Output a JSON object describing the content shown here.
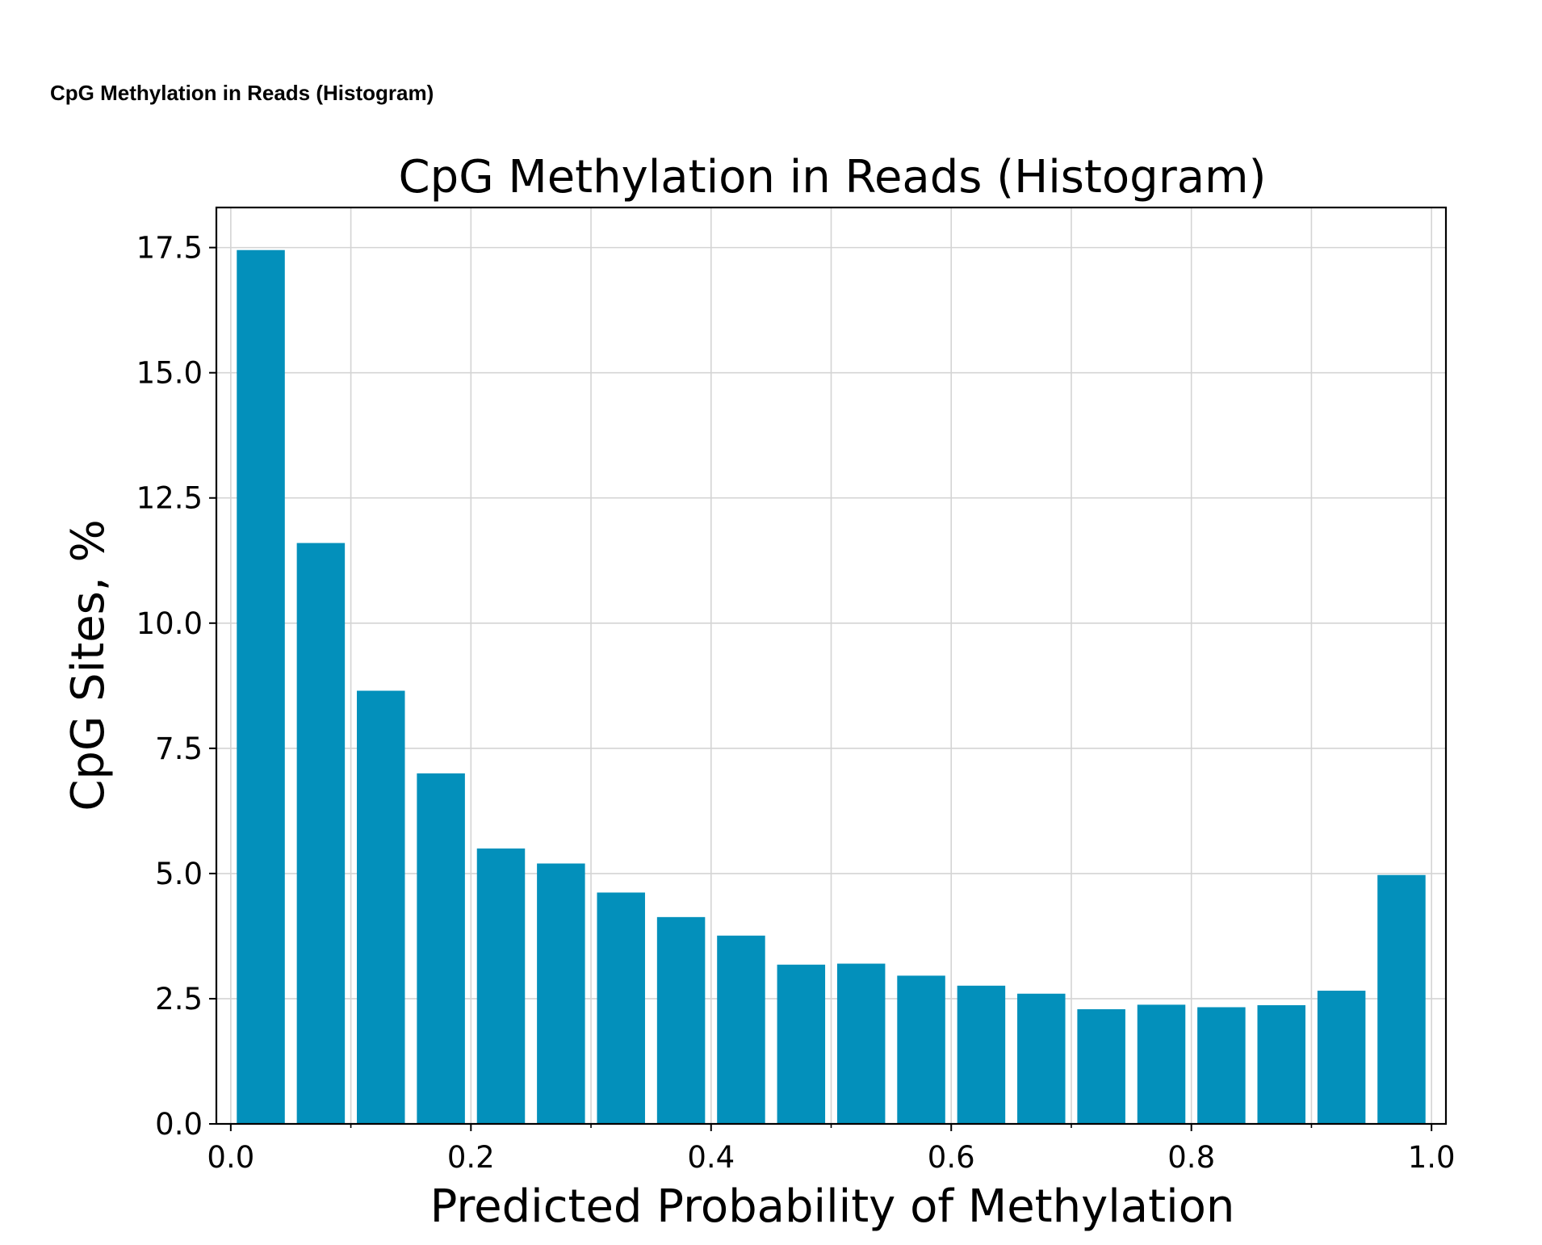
{
  "page": {
    "heading": "CpG Methylation in Reads (Histogram)"
  },
  "chart_data": {
    "type": "bar",
    "title": "CpG Methylation in Reads (Histogram)",
    "xlabel": "Predicted Probability of Methylation",
    "ylabel": "CpG Sites, %",
    "xlim": [
      -0.012,
      1.012
    ],
    "ylim": [
      0,
      18.3
    ],
    "grid": true,
    "bar_color": "#0390bb",
    "bin_width": 0.05,
    "bar_width_fraction": 0.8,
    "x": [
      0.025,
      0.075,
      0.125,
      0.175,
      0.225,
      0.275,
      0.325,
      0.375,
      0.425,
      0.475,
      0.525,
      0.575,
      0.625,
      0.675,
      0.725,
      0.775,
      0.825,
      0.875,
      0.925,
      0.975
    ],
    "values": [
      17.45,
      11.6,
      8.65,
      7.0,
      5.5,
      5.2,
      4.62,
      4.13,
      3.76,
      3.18,
      3.2,
      2.96,
      2.76,
      2.6,
      2.29,
      2.38,
      2.33,
      2.37,
      2.66,
      4.97
    ],
    "xticks": [
      0.0,
      0.2,
      0.4,
      0.6,
      0.8,
      1.0
    ],
    "xtick_labels": [
      "0.0",
      "0.2",
      "0.4",
      "0.6",
      "0.8",
      "1.0"
    ],
    "xminor_ticks": [
      0.1,
      0.3,
      0.5,
      0.7,
      0.9
    ],
    "yticks": [
      0.0,
      2.5,
      5.0,
      7.5,
      10.0,
      12.5,
      15.0,
      17.5
    ],
    "ytick_labels": [
      "0.0",
      "2.5",
      "5.0",
      "7.5",
      "10.0",
      "12.5",
      "15.0",
      "17.5"
    ]
  }
}
